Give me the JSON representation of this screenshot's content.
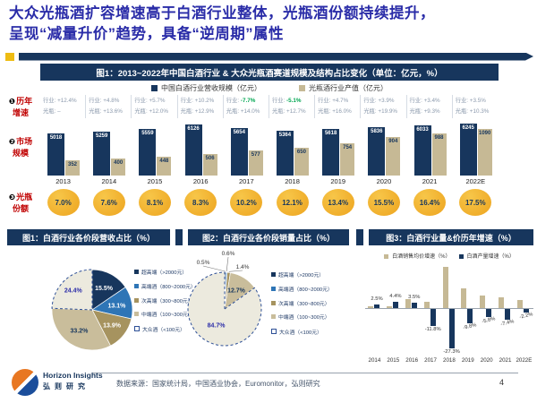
{
  "title": {
    "line1": "大众光瓶酒扩容增速高于白酒行业整体，光瓶酒份额持续提升，",
    "line2": "呈现“减量升价”趋势，具备“逆周期”属性"
  },
  "colors": {
    "navy": "#17365d",
    "tan": "#c6b995",
    "blue": "#2e75b6",
    "dark_tan": "#a6935f",
    "khaki": "#c9bd9b",
    "light_gray": "#eceade",
    "yellow": "#efac26",
    "red_label": "#c00000",
    "green_neg": "#00a651",
    "title_blue": "#2a2ca8"
  },
  "chart_data": [
    {
      "id": "fig_main",
      "type": "bar",
      "title": "图1：2013~2022年中国白酒行业 & 大众光瓶酒赛道规模及结构占比变化（单位：亿元，%）",
      "categories": [
        "2013",
        "2014",
        "2015",
        "2016",
        "2017",
        "2018",
        "2019",
        "2020",
        "2021",
        "2022E"
      ],
      "series": [
        {
          "name": "中国白酒行业营收规模（亿元）",
          "color": "#17365d",
          "values": [
            5018,
            5259,
            5559,
            6126,
            5654,
            5364,
            5618,
            5836,
            6033,
            6245
          ]
        },
        {
          "name": "光瓶酒行业产值（亿元）",
          "color": "#c6b995",
          "values": [
            352,
            400,
            448,
            506,
            577,
            650,
            754,
            904,
            988,
            1090
          ]
        }
      ],
      "row_labels": [
        {
          "num": "❶",
          "line1": "历年",
          "line2": "增速"
        },
        {
          "num": "❷",
          "line1": "市场",
          "line2": "规模"
        },
        {
          "num": "❸",
          "line1": "光瓶",
          "line2": "份额"
        }
      ],
      "growth_rows": {
        "industry_label": "行业:",
        "bottle_label": "光瓶:",
        "industry": [
          "+12.4%",
          "+4.8%",
          "+5.7%",
          "+10.2%",
          "-7.7%",
          "-5.1%",
          "+4.7%",
          "+3.9%",
          "+3.4%",
          "+3.5%"
        ],
        "bottle": [
          "–",
          "+13.6%",
          "+12.0%",
          "+12.9%",
          "+14.0%",
          "+12.7%",
          "+16.0%",
          "+19.9%",
          "+9.3%",
          "+10.3%"
        ]
      },
      "share_row": [
        "7.0%",
        "7.6%",
        "8.1%",
        "8.3%",
        "10.2%",
        "12.1%",
        "13.4%",
        "15.5%",
        "16.4%",
        "17.5%"
      ]
    },
    {
      "id": "fig_pie_revenue",
      "type": "pie",
      "title": "图1：白酒行业各价段营收占比（%）",
      "slices": [
        {
          "label": "超高端（>2000元）",
          "value": 15.5,
          "text": "15.5%",
          "color": "#17365d"
        },
        {
          "label": "高端酒（800~2000元）",
          "value": 13.1,
          "text": "13.1%",
          "color": "#2e75b6"
        },
        {
          "label": "次高端（300~800元）",
          "value": 13.9,
          "text": "13.9%",
          "color": "#a6935f"
        },
        {
          "label": "中端酒（100~300元）",
          "value": 33.2,
          "text": "33.2%",
          "color": "#c9bd9b"
        },
        {
          "label": "大众酒（<100元）",
          "value": 24.4,
          "text": "24.4%",
          "color": "#eceade",
          "dashed": true
        }
      ]
    },
    {
      "id": "fig_pie_volume",
      "type": "pie",
      "title": "图2：白酒行业各价段销量占比（%）",
      "slices": [
        {
          "label": "超高端（>2000元）",
          "value": 0.5,
          "text": "0.5%",
          "color": "#17365d"
        },
        {
          "label": "高端酒（800~2000元）",
          "value": 0.6,
          "text": "0.6%",
          "color": "#2e75b6"
        },
        {
          "label": "次高端（300~800元）",
          "value": 1.4,
          "text": "1.4%",
          "color": "#a6935f"
        },
        {
          "label": "中端酒（100~300元）",
          "value": 12.7,
          "text": "12.7%",
          "color": "#c9bd9b"
        },
        {
          "label": "大众酒（<100元）",
          "value": 84.7,
          "text": "84.7%",
          "color": "#eceade",
          "dashed": true
        }
      ]
    },
    {
      "id": "fig_growth",
      "type": "bar",
      "title": "图3：白酒行业量&价历年增速（%）",
      "categories": [
        "2014",
        "2015",
        "2016",
        "2017",
        "2018",
        "2019",
        "2020",
        "2021",
        "2022E"
      ],
      "series": [
        {
          "name": "白酒销售均价增速（%）",
          "color": "#c6b995",
          "values": [
            1.0,
            1.5,
            6.5,
            4.5,
            28.5,
            14.0,
            8.5,
            7.5,
            5.5
          ],
          "labels": [
            "",
            "",
            "",
            "",
            "",
            "",
            "",
            "",
            ""
          ]
        },
        {
          "name": "白酒产量增速（%）",
          "color": "#17365d",
          "values": [
            2.5,
            4.4,
            3.5,
            -11.8,
            -27.3,
            -9.8,
            -5.8,
            -7.4,
            -2.2
          ],
          "labels": [
            "2.5%",
            "4.4%",
            "3.5%",
            "-11.8%",
            "-27.3%",
            "-9.8%",
            "-5.8%",
            "-7.4%",
            "-2.2%"
          ]
        }
      ],
      "ylim": [
        -30,
        30
      ]
    }
  ],
  "footer": {
    "logo_title": "Horizon Insights",
    "logo_sub": "弘则研究",
    "source": "数据来源：国家统计局，中国酒业协会，Euromonitor，弘则研究",
    "page": "4"
  }
}
